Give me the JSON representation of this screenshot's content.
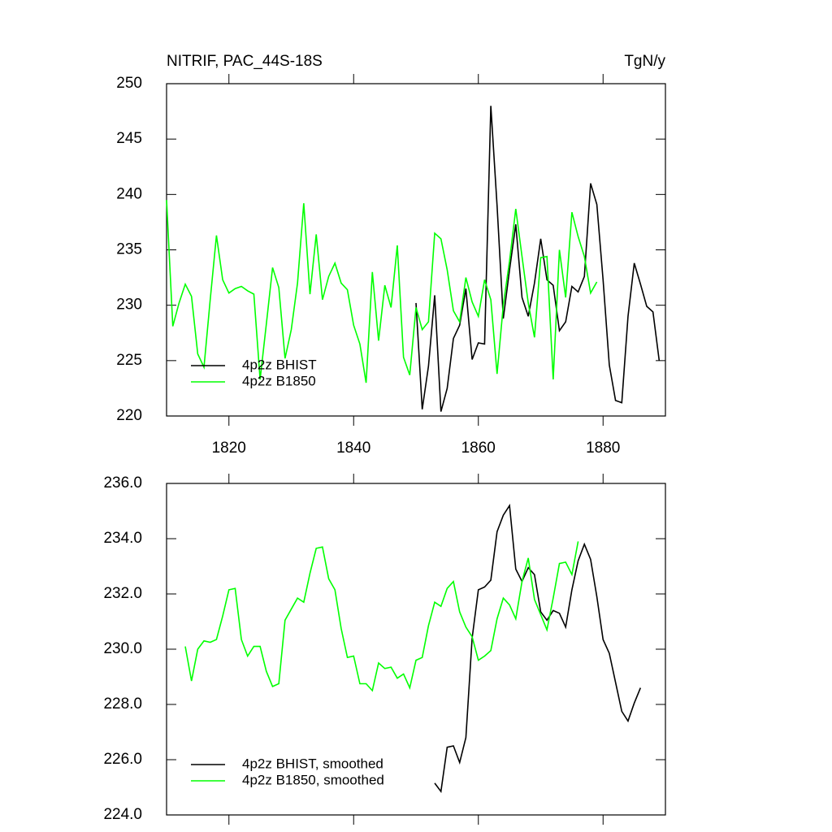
{
  "chart_data": [
    {
      "type": "line",
      "title": "NITRIF, PAC_44S-18S",
      "units": "TgN/y",
      "xlim": [
        1810,
        1890
      ],
      "xticks": [
        1820,
        1840,
        1860,
        1880
      ],
      "ylim": [
        220,
        250
      ],
      "yticks": [
        220,
        225,
        230,
        235,
        240,
        245,
        250
      ],
      "legend": "lower left",
      "series": [
        {
          "name": "4p2z BHIST",
          "color": "#000000",
          "x": [
            1850,
            1851,
            1852,
            1853,
            1854,
            1855,
            1856,
            1857,
            1858,
            1859,
            1860,
            1861,
            1862,
            1863,
            1864,
            1865,
            1866,
            1867,
            1868,
            1869,
            1870,
            1871,
            1872,
            1873,
            1874,
            1875,
            1876,
            1877,
            1878,
            1879,
            1880,
            1881,
            1882,
            1883,
            1884,
            1885,
            1886,
            1887,
            1888,
            1889
          ],
          "values": [
            230.2,
            220.6,
            224.5,
            230.9,
            220.4,
            222.5,
            227.0,
            228.2,
            231.5,
            225.1,
            226.6,
            226.5,
            248.0,
            239.0,
            228.8,
            233.2,
            237.3,
            230.7,
            229.0,
            232.0,
            236.0,
            232.3,
            231.8,
            227.7,
            228.5,
            231.7,
            231.2,
            232.6,
            241.0,
            239.1,
            232.3,
            224.6,
            221.4,
            221.2,
            229.0,
            233.8,
            231.9,
            229.9,
            229.4,
            225.0
          ]
        },
        {
          "name": "4p2z B1850",
          "color": "#00ff00",
          "x": [
            1810,
            1811,
            1812,
            1813,
            1814,
            1815,
            1816,
            1817,
            1818,
            1819,
            1820,
            1821,
            1822,
            1823,
            1824,
            1825,
            1826,
            1827,
            1828,
            1829,
            1830,
            1831,
            1832,
            1833,
            1834,
            1835,
            1836,
            1837,
            1838,
            1839,
            1840,
            1841,
            1842,
            1843,
            1844,
            1845,
            1846,
            1847,
            1848,
            1849,
            1850,
            1851,
            1852,
            1853,
            1854,
            1855,
            1856,
            1857,
            1858,
            1859,
            1860,
            1861,
            1862,
            1863,
            1864,
            1865,
            1866,
            1867,
            1868,
            1869,
            1870,
            1871,
            1872,
            1873,
            1874,
            1875,
            1876,
            1877,
            1878,
            1879
          ],
          "values": [
            239.5,
            228.1,
            230.2,
            231.9,
            230.8,
            225.6,
            224.4,
            230.5,
            236.3,
            232.3,
            231.1,
            231.5,
            231.7,
            231.3,
            231.0,
            223.3,
            228.3,
            233.4,
            231.6,
            225.2,
            227.8,
            232.0,
            239.2,
            231.0,
            236.4,
            230.5,
            232.6,
            233.8,
            232.0,
            231.4,
            228.2,
            226.5,
            223.0,
            233.0,
            226.8,
            231.8,
            229.8,
            235.4,
            225.3,
            223.7,
            229.8,
            227.8,
            228.5,
            236.5,
            236.0,
            233.2,
            229.5,
            228.5,
            232.5,
            230.3,
            229.0,
            232.3,
            230.5,
            223.8,
            230.0,
            234.0,
            238.7,
            234.4,
            230.2,
            227.1,
            234.3,
            234.4,
            223.3,
            235.0,
            230.7,
            238.4,
            236.2,
            234.4,
            231.1,
            232.1
          ]
        }
      ]
    },
    {
      "type": "line",
      "xlim": [
        1810,
        1890
      ],
      "xticks": [
        1820,
        1840,
        1860,
        1880
      ],
      "ylim": [
        224,
        236
      ],
      "yticks": [
        {
          "value": 224,
          "label": "224.0"
        },
        {
          "value": 226,
          "label": "226.0"
        },
        {
          "value": 228,
          "label": "228.0"
        },
        {
          "value": 230,
          "label": "230.0"
        },
        {
          "value": 232,
          "label": "232.0"
        },
        {
          "value": 234,
          "label": "234.0"
        },
        {
          "value": 236,
          "label": "236.0"
        }
      ],
      "legend": "lower left",
      "series": [
        {
          "name": "4p2z BHIST, smoothed",
          "color": "#000000",
          "x": [
            1853,
            1854,
            1855,
            1856,
            1857,
            1858,
            1859,
            1860,
            1861,
            1862,
            1863,
            1864,
            1865,
            1866,
            1867,
            1868,
            1869,
            1870,
            1871,
            1872,
            1873,
            1874,
            1875,
            1876,
            1877,
            1878,
            1879,
            1880,
            1881,
            1882,
            1883,
            1884,
            1885,
            1886
          ],
          "values": [
            225.15,
            224.85,
            226.45,
            226.5,
            225.9,
            226.8,
            230.4,
            232.15,
            232.25,
            232.5,
            234.25,
            234.85,
            235.2,
            232.9,
            232.45,
            232.95,
            232.7,
            231.35,
            231.05,
            231.4,
            231.3,
            230.8,
            232.15,
            233.2,
            233.8,
            233.25,
            231.9,
            230.35,
            229.85,
            228.8,
            227.75,
            227.4,
            228.05,
            228.6
          ]
        },
        {
          "name": "4p2z B1850, smoothed",
          "color": "#00ff00",
          "x": [
            1813,
            1814,
            1815,
            1816,
            1817,
            1818,
            1819,
            1820,
            1821,
            1822,
            1823,
            1824,
            1825,
            1826,
            1827,
            1828,
            1829,
            1830,
            1831,
            1832,
            1833,
            1834,
            1835,
            1836,
            1837,
            1838,
            1839,
            1840,
            1841,
            1842,
            1843,
            1844,
            1845,
            1846,
            1847,
            1848,
            1849,
            1850,
            1851,
            1852,
            1853,
            1854,
            1855,
            1856,
            1857,
            1858,
            1859,
            1860,
            1861,
            1862,
            1863,
            1864,
            1865,
            1866,
            1867,
            1868,
            1869,
            1870,
            1871,
            1872,
            1873,
            1874,
            1875,
            1876
          ],
          "values": [
            230.1,
            228.85,
            230.0,
            230.3,
            230.25,
            230.35,
            231.2,
            232.15,
            232.2,
            230.35,
            229.75,
            230.1,
            230.1,
            229.2,
            228.65,
            228.75,
            231.05,
            231.45,
            231.85,
            231.7,
            232.75,
            233.65,
            233.7,
            232.55,
            232.15,
            230.75,
            229.7,
            229.75,
            228.75,
            228.75,
            228.5,
            229.5,
            229.3,
            229.35,
            228.95,
            229.1,
            228.6,
            229.6,
            229.7,
            230.85,
            231.7,
            231.55,
            232.2,
            232.45,
            231.35,
            230.8,
            230.45,
            229.6,
            229.75,
            229.95,
            231.1,
            231.85,
            231.6,
            231.1,
            232.45,
            233.3,
            231.8,
            231.25,
            230.7,
            231.85,
            233.1,
            233.15,
            232.7,
            233.9
          ]
        }
      ]
    }
  ]
}
